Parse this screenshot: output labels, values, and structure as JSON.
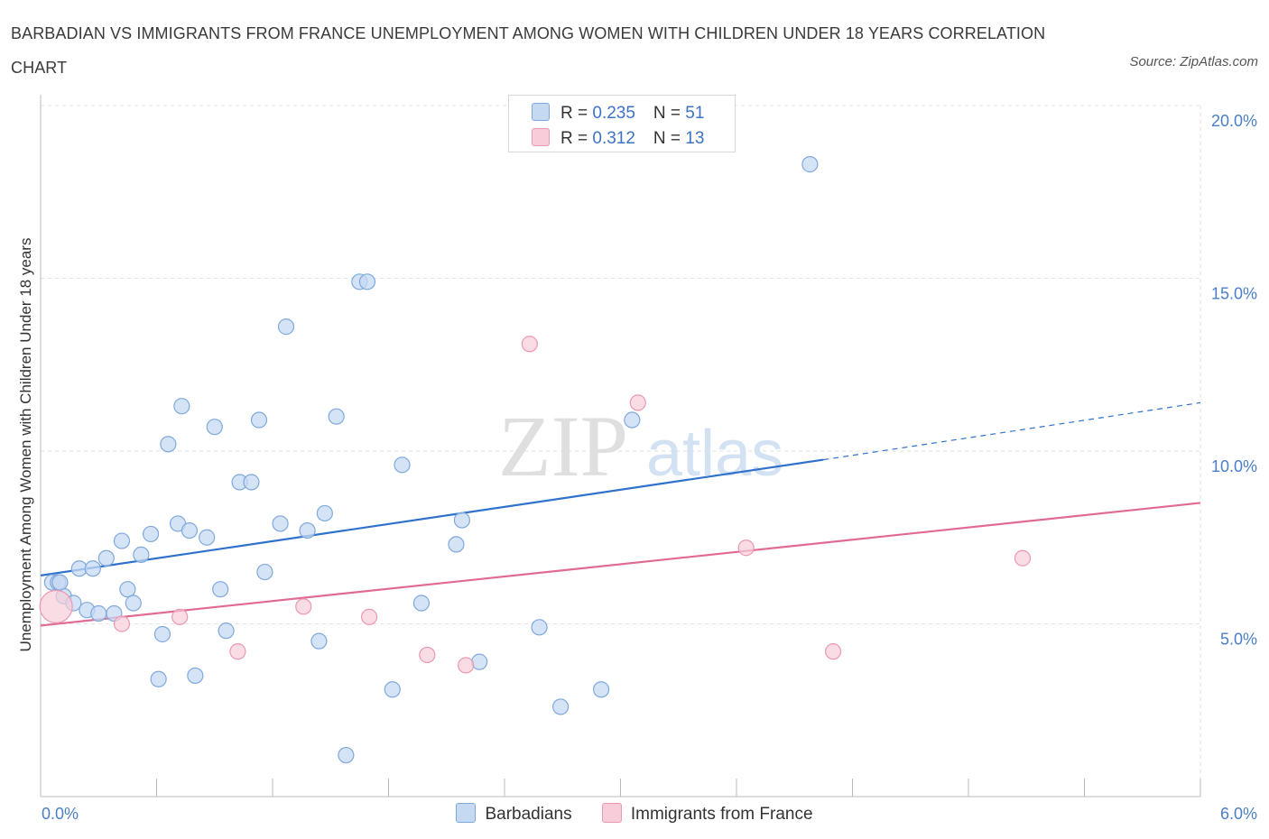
{
  "title": "BARBADIAN VS IMMIGRANTS FROM FRANCE UNEMPLOYMENT AMONG WOMEN WITH CHILDREN UNDER 18 YEARS CORRELATION CHART",
  "source": "Source: ZipAtlas.com",
  "watermark": {
    "zip": "ZIP",
    "atlas": "atlas"
  },
  "legend_top": [
    {
      "r_label": "R = ",
      "r": "0.235",
      "n_label": "N = ",
      "n": "51",
      "color": "#9fc3ef"
    },
    {
      "r_label": "R = ",
      "r": "0.312",
      "n_label": "N = ",
      "n": "13",
      "color": "#f4b6c9"
    }
  ],
  "legend_bottom": [
    {
      "label": "Barbadians",
      "color": "#9fc3ef"
    },
    {
      "label": "Immigrants from France",
      "color": "#f4b6c9"
    }
  ],
  "colors": {
    "blue_fill": "#c5d9f3",
    "blue_stroke": "#7fa9dc",
    "blue_line": "#2f72cc",
    "pink_fill": "#f8cdd9",
    "pink_stroke": "#eb98b3",
    "pink_line": "#e06a95",
    "tick_text": "#4a7fc7"
  },
  "chart_data": {
    "type": "scatter",
    "title": "BARBADIAN VS IMMIGRANTS FROM FRANCE UNEMPLOYMENT AMONG WOMEN WITH CHILDREN UNDER 18 YEARS CORRELATION CHART",
    "xlabel": "",
    "ylabel": "Unemployment Among Women with Children Under 18 years",
    "xlim": [
      0,
      6.0
    ],
    "ylim": [
      0,
      20.0
    ],
    "x_tick_labels": [
      "0.0%",
      "6.0%"
    ],
    "y_tick_labels": [
      "5.0%",
      "10.0%",
      "15.0%",
      "20.0%"
    ],
    "y_ticks": [
      5,
      10,
      15,
      20
    ],
    "grid": true,
    "legend_placement": "top-center",
    "series": [
      {
        "name": "Barbadians",
        "r": 0.235,
        "n": 51,
        "trend": {
          "x0": 0.0,
          "y0": 6.4,
          "x1": 4.05,
          "y1": 9.75,
          "dashed_to_x": 6.0,
          "dashed_to_y": 11.4
        },
        "points": [
          [
            0.06,
            6.2
          ],
          [
            0.09,
            6.2
          ],
          [
            0.12,
            5.8
          ],
          [
            0.17,
            5.6
          ],
          [
            0.2,
            6.6
          ],
          [
            0.24,
            5.4
          ],
          [
            0.27,
            6.6
          ],
          [
            0.3,
            5.3
          ],
          [
            0.34,
            6.9
          ],
          [
            0.38,
            5.3
          ],
          [
            0.42,
            7.4
          ],
          [
            0.45,
            6.0
          ],
          [
            0.48,
            5.6
          ],
          [
            0.52,
            7.0
          ],
          [
            0.57,
            7.6
          ],
          [
            0.61,
            3.4
          ],
          [
            0.63,
            4.7
          ],
          [
            0.66,
            10.2
          ],
          [
            0.71,
            7.9
          ],
          [
            0.73,
            11.3
          ],
          [
            0.77,
            7.7
          ],
          [
            0.8,
            3.5
          ],
          [
            0.86,
            7.5
          ],
          [
            0.9,
            10.7
          ],
          [
            0.93,
            6.0
          ],
          [
            0.96,
            4.8
          ],
          [
            1.03,
            9.1
          ],
          [
            1.09,
            9.1
          ],
          [
            1.13,
            10.9
          ],
          [
            1.16,
            6.5
          ],
          [
            1.24,
            7.9
          ],
          [
            1.27,
            13.6
          ],
          [
            1.38,
            7.7
          ],
          [
            1.44,
            4.5
          ],
          [
            1.47,
            8.2
          ],
          [
            1.53,
            11.0
          ],
          [
            1.58,
            1.2
          ],
          [
            1.65,
            14.9
          ],
          [
            1.69,
            14.9
          ],
          [
            1.82,
            3.1
          ],
          [
            1.87,
            9.6
          ],
          [
            1.97,
            5.6
          ],
          [
            2.15,
            7.3
          ],
          [
            2.18,
            8.0
          ],
          [
            2.27,
            3.9
          ],
          [
            2.58,
            4.9
          ],
          [
            2.69,
            2.6
          ],
          [
            2.9,
            3.1
          ],
          [
            3.06,
            10.9
          ],
          [
            3.98,
            18.3
          ],
          [
            0.1,
            6.2
          ]
        ]
      },
      {
        "name": "Immigrants from France",
        "r": 0.312,
        "n": 13,
        "trend": {
          "x0": 0.0,
          "y0": 4.95,
          "x1": 6.0,
          "y1": 8.5
        },
        "points": [
          [
            0.08,
            5.5
          ],
          [
            0.42,
            5.0
          ],
          [
            0.72,
            5.2
          ],
          [
            1.02,
            4.2
          ],
          [
            1.36,
            5.5
          ],
          [
            1.7,
            5.2
          ],
          [
            2.0,
            4.1
          ],
          [
            2.2,
            3.8
          ],
          [
            2.53,
            13.1
          ],
          [
            3.09,
            11.4
          ],
          [
            3.65,
            7.2
          ],
          [
            4.1,
            4.2
          ],
          [
            5.08,
            6.9
          ]
        ]
      }
    ]
  }
}
